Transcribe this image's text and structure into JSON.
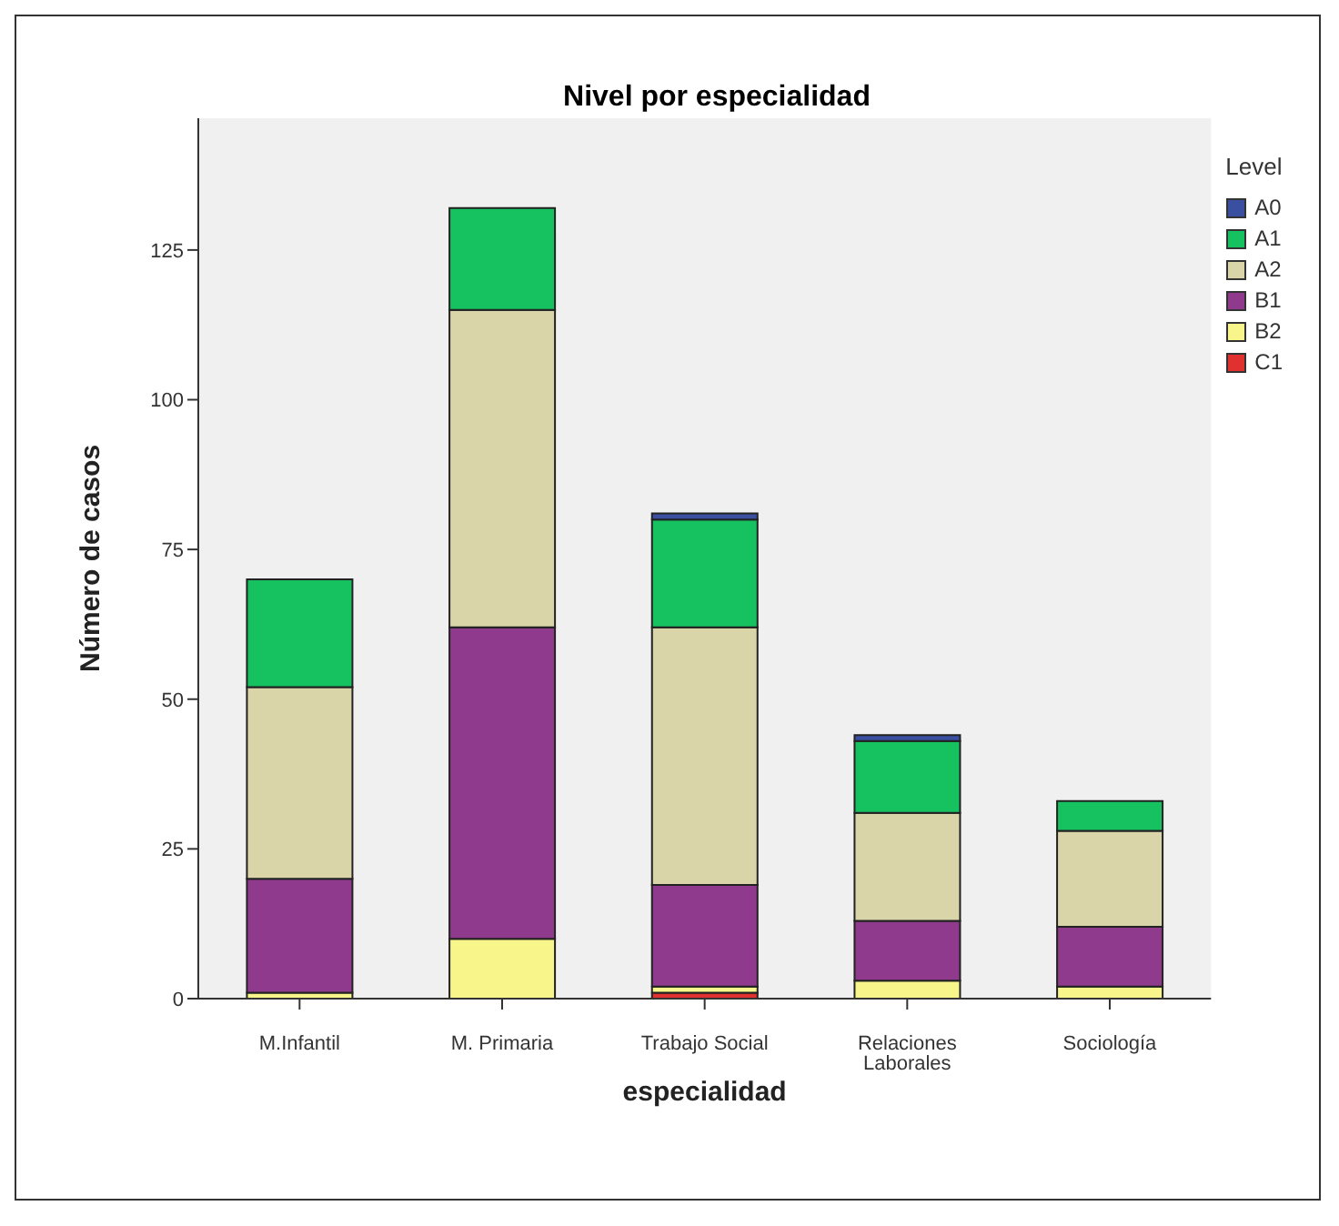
{
  "chart_data": {
    "type": "bar",
    "title": "Nivel por especialidad",
    "xlabel": "especialidad",
    "ylabel": "Número de casos",
    "legend_title": "Level",
    "categories": [
      "M.Infantil",
      "M. Primaria",
      "Trabajo Social",
      "Relaciones Laborales",
      "Sociología"
    ],
    "stacked": true,
    "ylim": [
      0,
      147
    ],
    "yticks": [
      0,
      25,
      50,
      75,
      100,
      125
    ],
    "grid": false,
    "legend": "top right",
    "series": [
      {
        "name": "C1",
        "color": "#e03030",
        "values": [
          0,
          0,
          1,
          0,
          0
        ]
      },
      {
        "name": "B2",
        "color": "#f8f68a",
        "values": [
          1,
          10,
          1,
          3,
          2
        ]
      },
      {
        "name": "B1",
        "color": "#8f3a8c",
        "values": [
          19,
          52,
          17,
          10,
          10
        ]
      },
      {
        "name": "A2",
        "color": "#d9d5a8",
        "values": [
          32,
          53,
          43,
          18,
          16
        ]
      },
      {
        "name": "A1",
        "color": "#16c160",
        "values": [
          18,
          17,
          18,
          12,
          5
        ]
      },
      {
        "name": "A0",
        "color": "#3a4fa0",
        "values": [
          0,
          0,
          1,
          1,
          0
        ]
      }
    ]
  }
}
